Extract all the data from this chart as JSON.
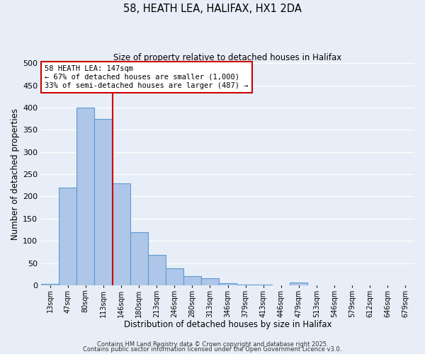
{
  "title": "58, HEATH LEA, HALIFAX, HX1 2DA",
  "subtitle": "Size of property relative to detached houses in Halifax",
  "xlabel": "Distribution of detached houses by size in Halifax",
  "ylabel": "Number of detached properties",
  "bar_labels": [
    "13sqm",
    "47sqm",
    "80sqm",
    "113sqm",
    "146sqm",
    "180sqm",
    "213sqm",
    "246sqm",
    "280sqm",
    "313sqm",
    "346sqm",
    "379sqm",
    "413sqm",
    "446sqm",
    "479sqm",
    "513sqm",
    "546sqm",
    "579sqm",
    "612sqm",
    "646sqm",
    "679sqm"
  ],
  "bar_values": [
    3,
    220,
    400,
    375,
    230,
    120,
    68,
    38,
    20,
    15,
    5,
    2,
    1,
    0,
    7,
    0,
    0,
    0,
    0,
    0,
    0
  ],
  "bar_color": "#aec6e8",
  "bar_edge_color": "#5b9bd5",
  "vline_color": "#cc0000",
  "vline_position": 3.5,
  "annotation_title": "58 HEATH LEA: 147sqm",
  "annotation_line1": "← 67% of detached houses are smaller (1,000)",
  "annotation_line2": "33% of semi-detached houses are larger (487) →",
  "annotation_box_color": "#ffffff",
  "annotation_box_edge": "#cc0000",
  "ylim": [
    0,
    500
  ],
  "yticks": [
    0,
    50,
    100,
    150,
    200,
    250,
    300,
    350,
    400,
    450,
    500
  ],
  "bg_color": "#e8eef7",
  "footnote1": "Contains HM Land Registry data © Crown copyright and database right 2025.",
  "footnote2": "Contains public sector information licensed under the Open Government Licence v3.0."
}
